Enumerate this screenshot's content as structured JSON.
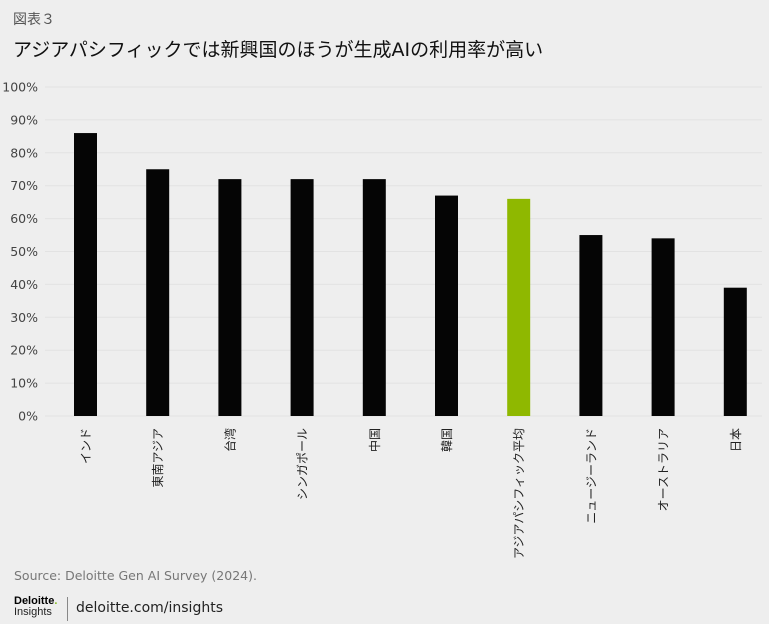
{
  "figure_label": "図表３",
  "title": "アジアパシフィックでは新興国のほうが生成AIの利用率が高い",
  "colors": {
    "bar": "#050505",
    "highlight": "#8fb800",
    "grid": "#e2e2e2",
    "background": "#eeeeee"
  },
  "chart_data": {
    "type": "bar",
    "title": "アジアパシフィックでは新興国のほうが生成AIの利用率が高い",
    "xlabel": "",
    "ylabel": "",
    "ylim": [
      0,
      100
    ],
    "yticks": [
      "0%",
      "10%",
      "20%",
      "30%",
      "40%",
      "50%",
      "60%",
      "70%",
      "80%",
      "90%",
      "100%"
    ],
    "grid": true,
    "categories": [
      "インド",
      "東南アジア",
      "台湾",
      "シンガポール",
      "中国",
      "韓国",
      "アジアパシフィック平均",
      "ニュージーランド",
      "オーストラリア",
      "日本"
    ],
    "values": [
      86,
      75,
      72,
      72,
      72,
      67,
      66,
      55,
      54,
      39
    ],
    "highlight_index": 6
  },
  "source": "Source: Deloitte Gen AI Survey (2024).",
  "footer": {
    "logo_top": "Deloitte",
    "logo_dot": ".",
    "logo_bottom": "Insights",
    "link": "deloitte.com/insights"
  }
}
